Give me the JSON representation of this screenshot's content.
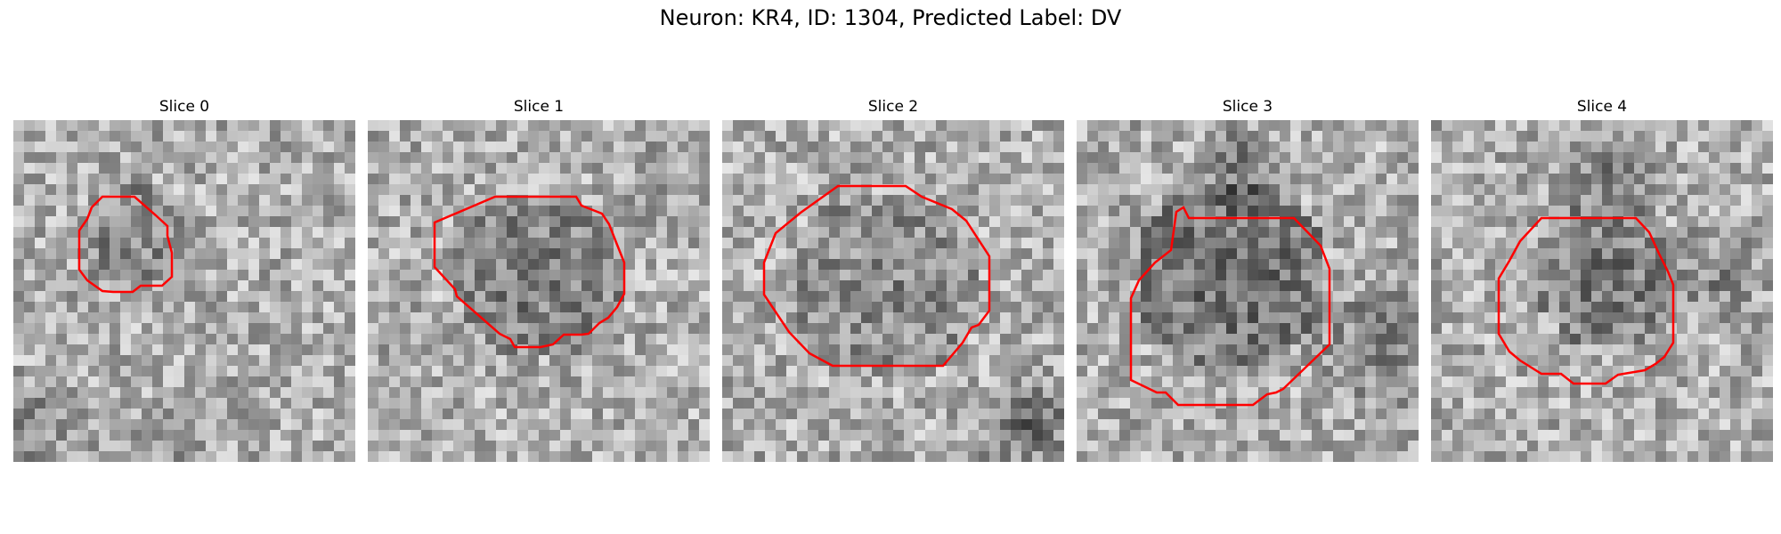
{
  "figure": {
    "title": "Neuron: KR4, ID: 1304, Predicted Label: DV"
  },
  "colors": {
    "contour": "#ff0000",
    "background": "#ffffff",
    "colormap": "grayscale"
  },
  "panels": [
    {
      "title": "Slice 0",
      "icon": "noisy-grayscale-microscopy-patch"
    },
    {
      "title": "Slice 1",
      "icon": "noisy-grayscale-microscopy-patch"
    },
    {
      "title": "Slice 2",
      "icon": "noisy-grayscale-microscopy-patch"
    },
    {
      "title": "Slice 3",
      "icon": "noisy-grayscale-microscopy-patch"
    },
    {
      "title": "Slice 4",
      "icon": "noisy-grayscale-microscopy-patch"
    }
  ]
}
